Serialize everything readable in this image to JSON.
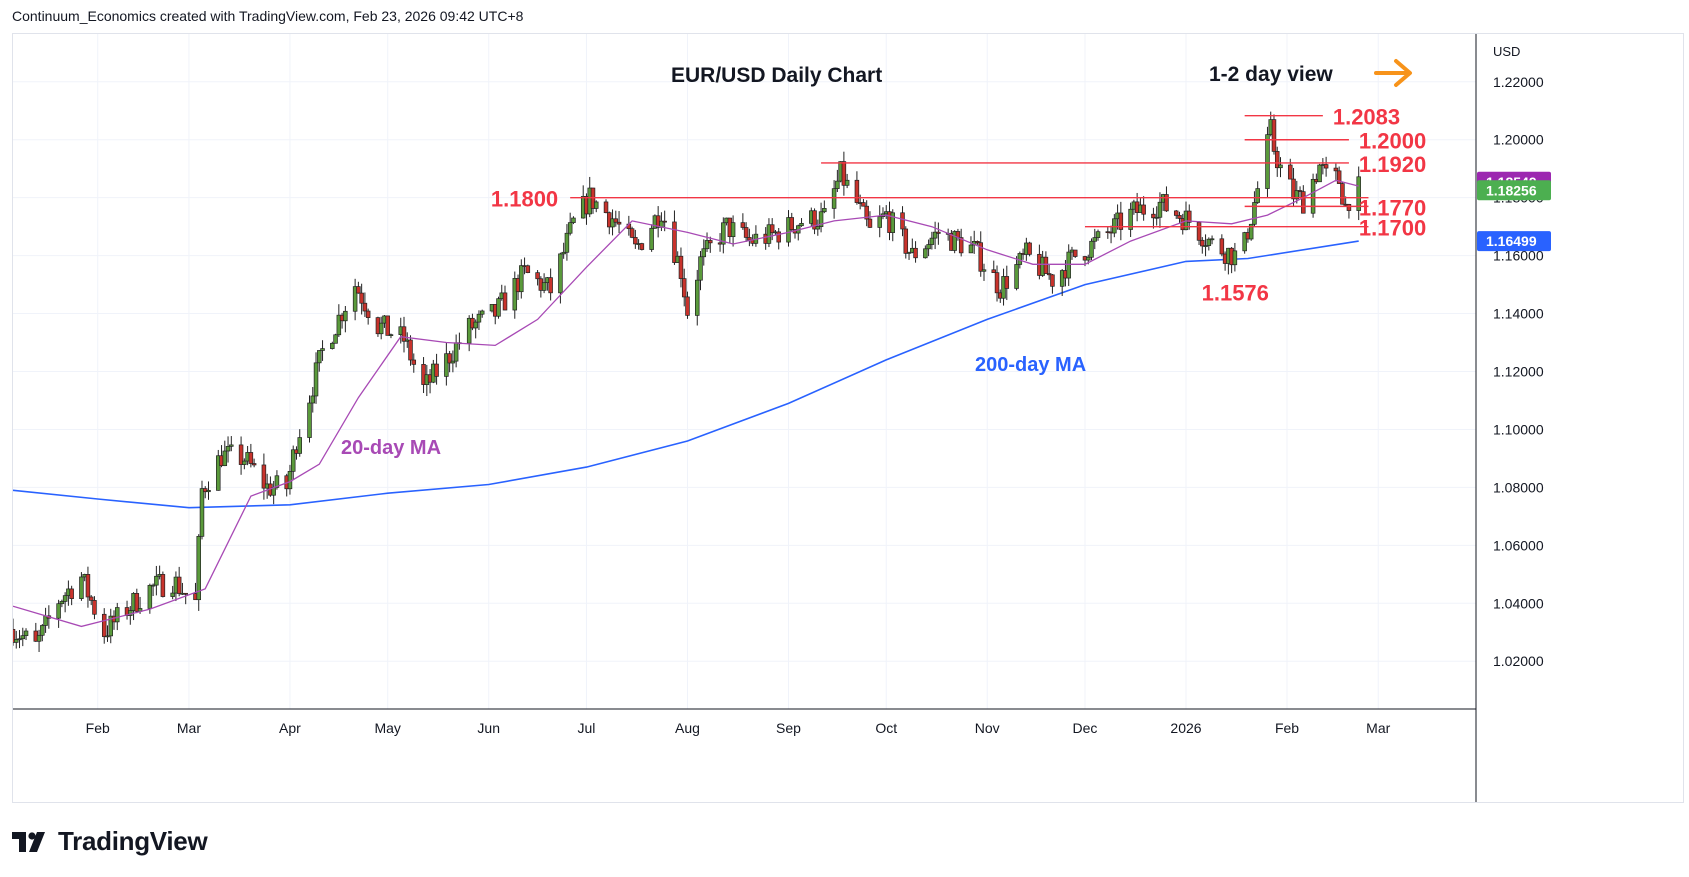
{
  "header": {
    "caption": "Continuum_Economics created with TradingView.com, Feb 23, 2026 09:42 UTC+8"
  },
  "brand": {
    "logo_text": "TradingView"
  },
  "colors": {
    "up": "#5a9a3b",
    "down": "#c8332c",
    "ma20": "#a84ab5",
    "ma200": "#2962ff",
    "level": "#f23645",
    "arrow": "#f7931a",
    "grid": "#f0f3fa",
    "axis_text": "#131722"
  },
  "chart_data": {
    "type": "candlestick",
    "title": "EUR/USD Daily Chart",
    "view_label": "1-2 day view",
    "currency_label": "USD",
    "y_ticks": [
      "1.22000",
      "1.20000",
      "1.18000",
      "1.16000",
      "1.14000",
      "1.12000",
      "1.10000",
      "1.08000",
      "1.06000",
      "1.04000",
      "1.02000"
    ],
    "y_tick_values": [
      1.22,
      1.2,
      1.18,
      1.16,
      1.14,
      1.12,
      1.1,
      1.08,
      1.06,
      1.04,
      1.02
    ],
    "ylim": [
      1.0035,
      1.2365
    ],
    "x_ticks": [
      "Feb",
      "Mar",
      "Apr",
      "May",
      "Jun",
      "Jul",
      "Aug",
      "Sep",
      "Oct",
      "Nov",
      "Dec",
      "2026",
      "Feb",
      "Mar"
    ],
    "x_tick_dates": [
      "2025-02-01",
      "2025-03-01",
      "2025-04-01",
      "2025-05-01",
      "2025-06-01",
      "2025-07-01",
      "2025-08-01",
      "2025-09-01",
      "2025-10-01",
      "2025-11-01",
      "2025-12-01",
      "2026-01-01",
      "2026-02-01",
      "2026-03-01"
    ],
    "xlim": [
      "2025-01-06",
      "2026-03-31"
    ],
    "anchors": [
      [
        "2025-01-06",
        1.031
      ],
      [
        "2025-01-13",
        1.025
      ],
      [
        "2025-01-20",
        1.041
      ],
      [
        "2025-01-27",
        1.049
      ],
      [
        "2025-02-03",
        1.03
      ],
      [
        "2025-02-10",
        1.038
      ],
      [
        "2025-02-17",
        1.045
      ],
      [
        "2025-02-24",
        1.048
      ],
      [
        "2025-03-03",
        1.04
      ],
      [
        "2025-03-05",
        1.079
      ],
      [
        "2025-03-11",
        1.091
      ],
      [
        "2025-03-18",
        1.09
      ],
      [
        "2025-03-25",
        1.08
      ],
      [
        "2025-03-31",
        1.08
      ],
      [
        "2025-04-03",
        1.096
      ],
      [
        "2025-04-11",
        1.127
      ],
      [
        "2025-04-21",
        1.15
      ],
      [
        "2025-04-28",
        1.136
      ],
      [
        "2025-05-06",
        1.131
      ],
      [
        "2025-05-12",
        1.114
      ],
      [
        "2025-05-19",
        1.124
      ],
      [
        "2025-05-26",
        1.135
      ],
      [
        "2025-06-03",
        1.14
      ],
      [
        "2025-06-12",
        1.154
      ],
      [
        "2025-06-20",
        1.148
      ],
      [
        "2025-06-27",
        1.171
      ],
      [
        "2025-07-02",
        1.18
      ],
      [
        "2025-07-09",
        1.173
      ],
      [
        "2025-07-16",
        1.162
      ],
      [
        "2025-07-24",
        1.176
      ],
      [
        "2025-07-30",
        1.155
      ],
      [
        "2025-08-01",
        1.141
      ],
      [
        "2025-08-05",
        1.158
      ],
      [
        "2025-08-13",
        1.17
      ],
      [
        "2025-08-20",
        1.165
      ],
      [
        "2025-08-27",
        1.167
      ],
      [
        "2025-09-05",
        1.172
      ],
      [
        "2025-09-12",
        1.173
      ],
      [
        "2025-09-17",
        1.188
      ],
      [
        "2025-09-22",
        1.178
      ],
      [
        "2025-09-26",
        1.168
      ],
      [
        "2025-10-01",
        1.174
      ],
      [
        "2025-10-09",
        1.16
      ],
      [
        "2025-10-17",
        1.168
      ],
      [
        "2025-10-28",
        1.162
      ],
      [
        "2025-11-05",
        1.149
      ],
      [
        "2025-11-13",
        1.16
      ],
      [
        "2025-11-21",
        1.152
      ],
      [
        "2025-11-28",
        1.16
      ],
      [
        "2025-12-05",
        1.165
      ],
      [
        "2025-12-16",
        1.175
      ],
      [
        "2025-12-24",
        1.178
      ],
      [
        "2026-01-02",
        1.172
      ],
      [
        "2026-01-09",
        1.164
      ],
      [
        "2026-01-16",
        1.16
      ],
      [
        "2026-01-19",
        1.164
      ],
      [
        "2026-01-23",
        1.183
      ],
      [
        "2026-01-27",
        1.203
      ],
      [
        "2026-01-28",
        1.197
      ],
      [
        "2026-01-30",
        1.19
      ],
      [
        "2026-02-03",
        1.181
      ],
      [
        "2026-02-06",
        1.179
      ],
      [
        "2026-02-11",
        1.191
      ],
      [
        "2026-02-13",
        1.187
      ],
      [
        "2026-02-17",
        1.186
      ],
      [
        "2026-02-19",
        1.177
      ],
      [
        "2026-02-20",
        1.18
      ],
      [
        "2026-02-23",
        1.183
      ]
    ],
    "ma20_points": [
      [
        "2025-01-06",
        1.039
      ],
      [
        "2025-01-27",
        1.032
      ],
      [
        "2025-02-17",
        1.038
      ],
      [
        "2025-03-06",
        1.045
      ],
      [
        "2025-03-20",
        1.077
      ],
      [
        "2025-04-01",
        1.082
      ],
      [
        "2025-04-10",
        1.088
      ],
      [
        "2025-04-22",
        1.111
      ],
      [
        "2025-05-05",
        1.132
      ],
      [
        "2025-05-19",
        1.13
      ],
      [
        "2025-06-03",
        1.129
      ],
      [
        "2025-06-16",
        1.138
      ],
      [
        "2025-07-01",
        1.156
      ],
      [
        "2025-07-15",
        1.172
      ],
      [
        "2025-08-01",
        1.168
      ],
      [
        "2025-08-15",
        1.164
      ],
      [
        "2025-09-01",
        1.168
      ],
      [
        "2025-09-15",
        1.172
      ],
      [
        "2025-10-01",
        1.174
      ],
      [
        "2025-10-15",
        1.17
      ],
      [
        "2025-11-01",
        1.162
      ],
      [
        "2025-11-15",
        1.157
      ],
      [
        "2025-12-01",
        1.157
      ],
      [
        "2025-12-15",
        1.165
      ],
      [
        "2026-01-01",
        1.172
      ],
      [
        "2026-01-15",
        1.171
      ],
      [
        "2026-01-26",
        1.174
      ],
      [
        "2026-02-06",
        1.18
      ],
      [
        "2026-02-16",
        1.186
      ],
      [
        "2026-02-23",
        1.184
      ]
    ],
    "ma200_points": [
      [
        "2025-01-06",
        1.079
      ],
      [
        "2025-02-01",
        1.076
      ],
      [
        "2025-03-01",
        1.073
      ],
      [
        "2025-04-01",
        1.074
      ],
      [
        "2025-05-01",
        1.078
      ],
      [
        "2025-06-01",
        1.081
      ],
      [
        "2025-07-01",
        1.087
      ],
      [
        "2025-08-01",
        1.096
      ],
      [
        "2025-09-01",
        1.109
      ],
      [
        "2025-10-01",
        1.124
      ],
      [
        "2025-11-01",
        1.138
      ],
      [
        "2025-12-01",
        1.15
      ],
      [
        "2026-01-01",
        1.158
      ],
      [
        "2026-01-20",
        1.159
      ],
      [
        "2026-02-23",
        1.165
      ]
    ],
    "levels": [
      {
        "label": "1.2083",
        "value": 1.2083,
        "from": "2026-01-19",
        "to": "2026-02-12",
        "label_side": "right"
      },
      {
        "label": "1.2000",
        "value": 1.2,
        "from": "2026-01-19",
        "to": "2026-02-20",
        "label_side": "right"
      },
      {
        "label": "1.1920",
        "value": 1.192,
        "from": "2025-09-11",
        "to": "2026-02-20",
        "label_side": "right"
      },
      {
        "label": "1.1800",
        "value": 1.18,
        "from": "2025-06-26",
        "to": "2026-02-26",
        "label_side": "left"
      },
      {
        "label": "1.1770",
        "value": 1.177,
        "from": "2026-01-19",
        "to": "2026-02-26",
        "label_side": "right"
      },
      {
        "label": "1.1700",
        "value": 1.17,
        "from": "2025-12-01",
        "to": "2026-02-26",
        "label_side": "right"
      }
    ],
    "low_label": {
      "label": "1.1576",
      "value": 1.1576
    },
    "annotations": {
      "ma20_label": "20-day MA",
      "ma200_label": "200-day MA"
    },
    "price_badges": [
      {
        "label": "1.18549",
        "value": 1.18549,
        "color": "#9c27b0"
      },
      {
        "label": "1.18256",
        "value": 1.18256,
        "color": "#4caf50"
      },
      {
        "label": "1.16499",
        "value": 1.16499,
        "color": "#2962ff"
      }
    ]
  }
}
